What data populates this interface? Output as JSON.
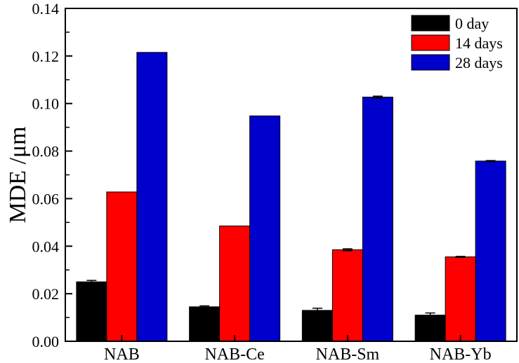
{
  "chart_data": {
    "type": "bar",
    "title": "",
    "xlabel": "",
    "ylabel": "MDE  /μm",
    "ylim": [
      0,
      0.14
    ],
    "yticks": [
      "0.00",
      "0.02",
      "0.04",
      "0.06",
      "0.08",
      "0.10",
      "0.12",
      "0.14"
    ],
    "categories": [
      "NAB",
      "NAB-Ce",
      "NAB-Sm",
      "NAB-Yb"
    ],
    "series": [
      {
        "name": "0 day",
        "color": "#000000",
        "values": [
          0.025,
          0.0145,
          0.013,
          0.011
        ],
        "errors": [
          0.0006,
          0.0004,
          0.0009,
          0.0009
        ]
      },
      {
        "name": "14 days",
        "color": "#ff0000",
        "values": [
          0.0628,
          0.0485,
          0.0385,
          0.0355
        ],
        "errors": [
          0.0,
          0.0,
          0.0004,
          0.0002
        ]
      },
      {
        "name": "28 days",
        "color": "#0000cc",
        "values": [
          0.1215,
          0.0948,
          0.1027,
          0.0758
        ],
        "errors": [
          0.0,
          0.0,
          0.0004,
          0.0002
        ]
      }
    ],
    "grid": false,
    "legend_position": "top-right"
  }
}
